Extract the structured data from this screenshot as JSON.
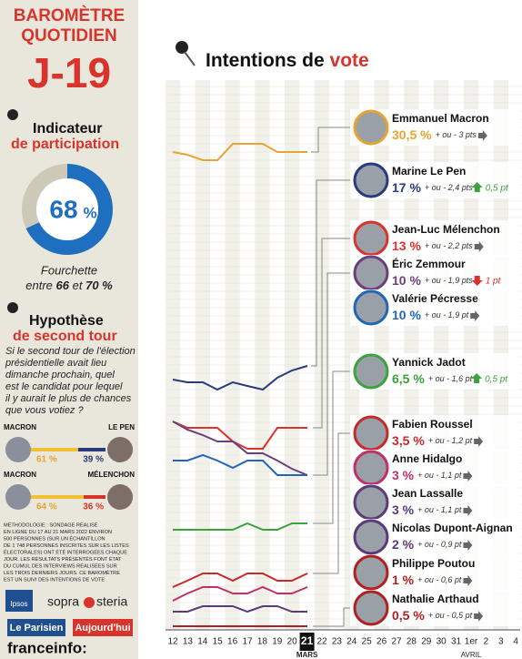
{
  "left": {
    "title": [
      "BAROMÈTRE",
      "QUOTIDIEN"
    ],
    "countdown": "J-19",
    "participation": {
      "title": "Indicateur",
      "subtitle": "de participation",
      "value": "68",
      "unit": "%",
      "range_label": "Fourchette",
      "range_text": [
        "entre",
        "66",
        "et",
        "70 %"
      ]
    },
    "second_round": {
      "title": "Hypothèse",
      "subtitle": "de second tour",
      "question": [
        "Si le second tour de l'élection",
        "présidentielle avait lieu",
        "dimanche prochain, quel",
        "est le candidat pour lequel",
        "il y aurait le plus de chances",
        "que vous votiez ?"
      ],
      "duels": [
        {
          "left": "MACRON",
          "right": "LE PEN",
          "left_value": "61 %",
          "right_value": "39 %"
        },
        {
          "left": "MACRON",
          "right": "MÉLENCHON",
          "left_value": "64 %",
          "right_value": "36 %"
        }
      ]
    },
    "methodology": [
      "MÉTHODOLOGIE : SONDAGE RÉALISÉ",
      "EN LIGNE DU 17 AU 21 MARS 2022 ENVIRON",
      "500 PERSONNES (SUR UN ÉCHANTILLON",
      "DE 1 748 PERSONNES INSCRITES SUR LES LISTES",
      "ÉLECTORALES) ONT ÉTÉ INTERROGÉES CHAQUE",
      "JOUR. LES RÉSULTATS PRÉSENTÉS FONT ÉTAT",
      "DU CUMUL DES INTERVIEWS RÉALISÉES SUR",
      "LES TROIS DERNIERS JOURS. CE BAROMÈTRE",
      "EST UN SUIVI DES INTENTIONS DE VOTE"
    ],
    "logos": [
      "Ipsos",
      "sopra",
      "steria",
      "Le Parisien",
      "Aujourd'hui",
      "franceinfo:"
    ]
  },
  "main": {
    "title": "Intentions de",
    "title_accent": "vote",
    "days": [
      "12",
      "13",
      "14",
      "15",
      "16",
      "17",
      "18",
      "19",
      "20",
      "21",
      "22",
      "23",
      "24",
      "25",
      "26",
      "27",
      "28",
      "29",
      "30",
      "31",
      "1er",
      "2",
      "3",
      "4"
    ],
    "months": [
      "MARS",
      "AVRIL"
    ],
    "candidates": [
      {
        "name": "Emmanuel Macron",
        "value": "30,5 %",
        "margin": "+ ou - 3 pts",
        "trend": "right",
        "color": "#e5a532"
      },
      {
        "name": "Marine Le Pen",
        "value": "17 %",
        "margin": "+ ou - 2,4 pts",
        "trend": "up",
        "change": "0,5 pt",
        "color": "#2a3a7c"
      },
      {
        "name": "Jean-Luc Mélenchon",
        "value": "13 %",
        "margin": "+ ou - 2,2 pts",
        "trend": "right",
        "color": "#d9342b"
      },
      {
        "name": "Éric Zemmour",
        "value": "10 %",
        "margin": "+ ou - 1,9 pts",
        "trend": "down",
        "change": "1 pt",
        "color": "#6b3f7c"
      },
      {
        "name": "Valérie Pécresse",
        "value": "10 %",
        "margin": "+ ou - 1,9 pt",
        "trend": "right",
        "color": "#2266b5"
      },
      {
        "name": "Yannick Jadot",
        "value": "6,5 %",
        "margin": "+ ou - 1,6 pt",
        "trend": "up",
        "change": "0,5 pt",
        "color": "#3aa33a"
      },
      {
        "name": "Fabien Roussel",
        "value": "3,5 %",
        "margin": "+ ou - 1,2 pt",
        "trend": "right",
        "color": "#c62a2a"
      },
      {
        "name": "Anne Hidalgo",
        "value": "3 %",
        "margin": "+ ou - 1,1 pt",
        "trend": "right",
        "color": "#c0306a"
      },
      {
        "name": "Jean Lassalle",
        "value": "3 %",
        "margin": "+ ou - 1,1 pt",
        "trend": "right",
        "color": "#5a3b7a"
      },
      {
        "name": "Nicolas Dupont-Aignan",
        "value": "2 %",
        "margin": "+ ou - 0,9 pt",
        "trend": "right",
        "color": "#5a3b7a"
      },
      {
        "name": "Philippe Poutou",
        "value": "1 %",
        "margin": "+ ou - 0,6 pt",
        "trend": "right",
        "color": "#b02020"
      },
      {
        "name": "Nathalie Arthaud",
        "value": "0,5 %",
        "margin": "+ ou - 0,5 pt",
        "trend": "right",
        "color": "#b02020"
      }
    ]
  }
}
